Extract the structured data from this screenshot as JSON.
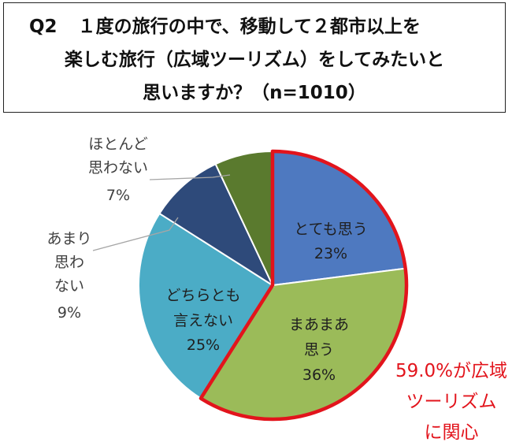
{
  "question": {
    "label": "Q2",
    "line1": "１度の旅行の中で、移動して２都市以上を",
    "line2": "楽しむ旅行（広域ツーリズム）をしてみたいと",
    "line3": "思いますか？（n=1010）"
  },
  "chart_data": {
    "type": "pie",
    "start_angle_deg": 0,
    "direction": "clockwise",
    "slices": [
      {
        "label": "とても思う",
        "value": 23,
        "value_label": "23%",
        "color": "#4e79c0"
      },
      {
        "label": "まあまあ思う",
        "value": 36,
        "value_label": "36%",
        "color": "#9bbb59"
      },
      {
        "label": "どちらとも言えない",
        "value": 25,
        "value_label": "25%",
        "color": "#4bacc6"
      },
      {
        "label": "あまり思わない",
        "value": 9,
        "value_label": "9%",
        "color": "#2e4a7a"
      },
      {
        "label": "ほとんど思わない",
        "value": 7,
        "value_label": "7%",
        "color": "#5a7a2e"
      }
    ],
    "highlight": {
      "slices": [
        "とても思う",
        "まあまあ思う"
      ],
      "color": "#e2141c",
      "text_lines": [
        "59.0%が広域",
        "ツーリズム",
        "に関心"
      ]
    }
  }
}
